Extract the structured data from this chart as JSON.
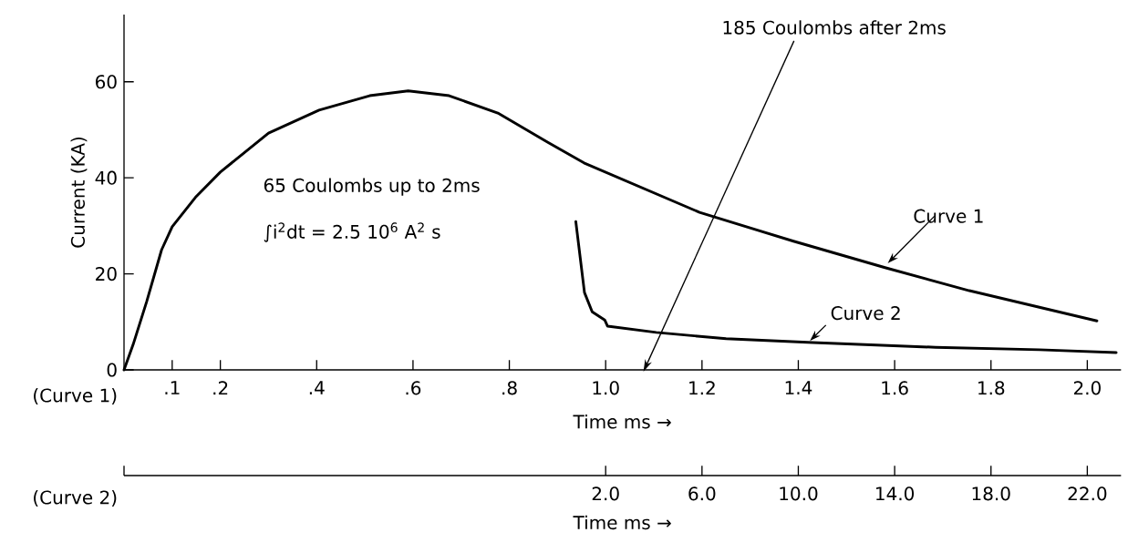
{
  "chart_data": {
    "type": "line",
    "ylabel": "Current (KA)",
    "xlabel": "Time ms →",
    "x2label": "Time ms →",
    "xlim": [
      0,
      2.07
    ],
    "ylim": [
      0,
      74
    ],
    "x2lim": [
      -18,
      23.4
    ],
    "xticks": [
      {
        "value": 0.1,
        "label": ".1"
      },
      {
        "value": 0.2,
        "label": ".2"
      },
      {
        "value": 0.4,
        "label": ".4"
      },
      {
        "value": 0.6,
        "label": ".6"
      },
      {
        "value": 0.8,
        "label": ".8"
      },
      {
        "value": 1.0,
        "label": "1.0"
      },
      {
        "value": 1.2,
        "label": "1.2"
      },
      {
        "value": 1.4,
        "label": "1.4"
      },
      {
        "value": 1.6,
        "label": "1.6"
      },
      {
        "value": 1.8,
        "label": "1.8"
      },
      {
        "value": 2.0,
        "label": "2.0"
      }
    ],
    "x2ticks": [
      {
        "value": -18,
        "label": null
      },
      {
        "value": 2,
        "label": "2.0"
      },
      {
        "value": 6,
        "label": "6.0"
      },
      {
        "value": 10,
        "label": "10.0"
      },
      {
        "value": 14,
        "label": "14.0"
      },
      {
        "value": 18,
        "label": "18.0"
      },
      {
        "value": 22,
        "label": "22.0"
      }
    ],
    "yticks": [
      0,
      20,
      40,
      60
    ],
    "series": [
      {
        "name": "Curve 1",
        "color": "#000000",
        "x": [
          0,
          0.019,
          0.047,
          0.078,
          0.1,
          0.148,
          0.2,
          0.3,
          0.405,
          0.51,
          0.59,
          0.675,
          0.776,
          0.88,
          0.955,
          1.195,
          1.39,
          1.58,
          1.755,
          2.02
        ],
        "values": [
          0,
          5.3,
          14.2,
          25,
          29.8,
          35.9,
          41.2,
          49.3,
          54.1,
          57.1,
          58.1,
          57.1,
          53.5,
          47.4,
          43.1,
          32.8,
          26.8,
          21.3,
          16.5,
          10.2
        ]
      },
      {
        "name": "Curve 2",
        "color": "#000000",
        "axis": "x2",
        "x": [
          0.76,
          1.12,
          1.44,
          1.96,
          2.08,
          4.1,
          7.0,
          10.6,
          15.7,
          20.0,
          23.2
        ],
        "values": [
          30.9,
          16.1,
          12.1,
          10.4,
          9.1,
          7.8,
          6.5,
          5.7,
          4.7,
          4.2,
          3.6
        ]
      }
    ],
    "annotations": [
      "185 Coulombs after 2ms",
      "65 Coulombs up to 2ms",
      "∫i$^{2}$dt = 2.5 10$^{6}$ A$^{2}$ s",
      "(Curve 1)",
      "(Curve 2)"
    ]
  }
}
